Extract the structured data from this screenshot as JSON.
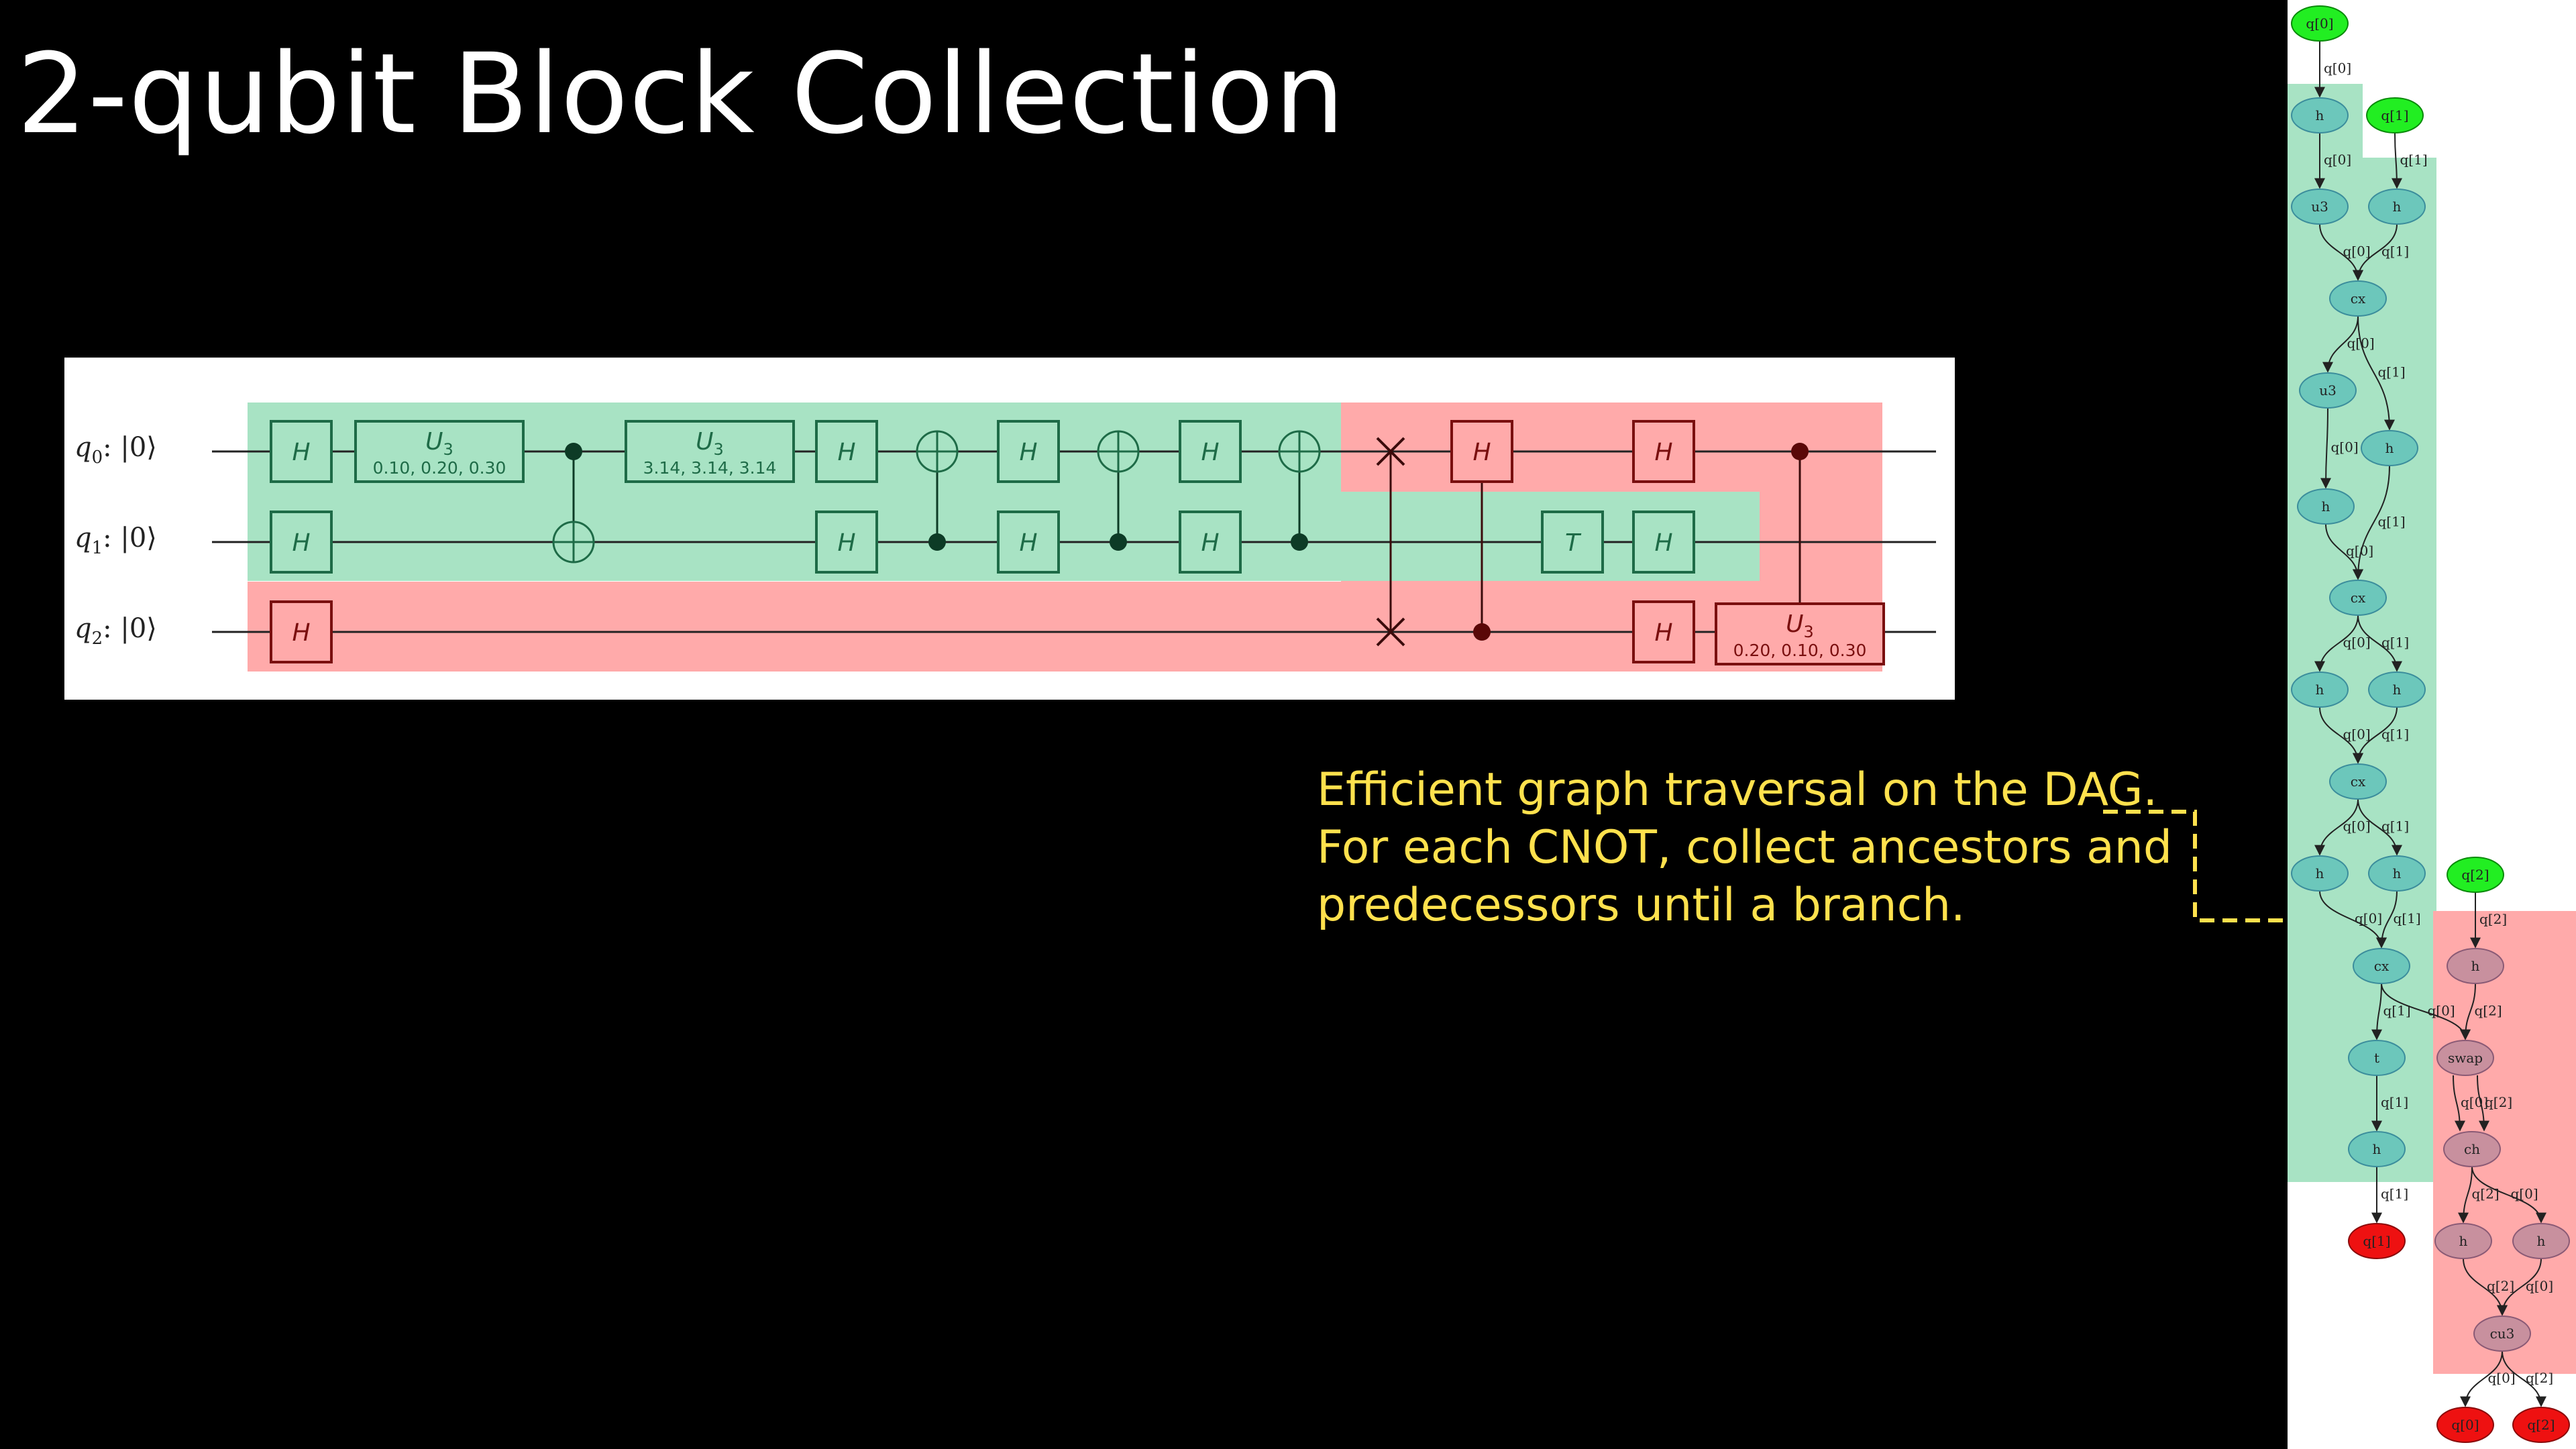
{
  "slide": {
    "title": "2-qubit Block Collection",
    "caption": [
      "Efficient graph traversal on the DAG.",
      "For each CNOT, collect ancestors and",
      "predecessors until a branch."
    ]
  },
  "colors": {
    "block_green": "#a8e3c4",
    "block_red": "#ffaaaa",
    "gate_green": "#1e6b47",
    "gate_red": "#7a0f0f",
    "annotation": "#ffe14d",
    "input_node": "#22ee22",
    "output_node": "#ee1111",
    "dag_green_node": "#6cc7bb",
    "dag_red_node": "#c8909e"
  },
  "circuit": {
    "qubits": [
      {
        "name": "q",
        "index": "0",
        "ket": ": |0⟩"
      },
      {
        "name": "q",
        "index": "1",
        "ket": ": |0⟩"
      },
      {
        "name": "q",
        "index": "2",
        "ket": ": |0⟩"
      }
    ],
    "gates": [
      {
        "id": "h-q0-a",
        "label": "H"
      },
      {
        "id": "h-q1-a",
        "label": "H"
      },
      {
        "id": "h-q2-a",
        "label": "H"
      },
      {
        "id": "u3-q0-a",
        "label": "U",
        "sub": "3",
        "params": "0.10, 0.20, 0.30"
      },
      {
        "id": "u3-q0-b",
        "label": "U",
        "sub": "3",
        "params": "3.14, 3.14, 3.14"
      },
      {
        "id": "h-q0-b",
        "label": "H"
      },
      {
        "id": "h-q1-b",
        "label": "H"
      },
      {
        "id": "h-q0-c",
        "label": "H"
      },
      {
        "id": "h-q1-c",
        "label": "H"
      },
      {
        "id": "h-q0-d",
        "label": "H"
      },
      {
        "id": "h-q1-d",
        "label": "H"
      },
      {
        "id": "h-q0-e",
        "label": "H"
      },
      {
        "id": "t-q1",
        "label": "T"
      },
      {
        "id": "h-q1-e",
        "label": "H"
      },
      {
        "id": "h-q0-f",
        "label": "H"
      },
      {
        "id": "h-q2-b",
        "label": "H"
      },
      {
        "id": "u3-q2",
        "label": "U",
        "sub": "3",
        "params": "0.20, 0.10, 0.30"
      }
    ]
  },
  "dag": {
    "nodes": [
      {
        "id": "in0",
        "label": "q[0]"
      },
      {
        "id": "in1",
        "label": "q[1]"
      },
      {
        "id": "in2",
        "label": "q[2]"
      },
      {
        "id": "h1",
        "label": "h"
      },
      {
        "id": "u3a",
        "label": "u3"
      },
      {
        "id": "h2",
        "label": "h"
      },
      {
        "id": "cx1",
        "label": "cx"
      },
      {
        "id": "u3b",
        "label": "u3"
      },
      {
        "id": "h3",
        "label": "h"
      },
      {
        "id": "h4",
        "label": "h"
      },
      {
        "id": "cx2",
        "label": "cx"
      },
      {
        "id": "h5",
        "label": "h"
      },
      {
        "id": "h6",
        "label": "h"
      },
      {
        "id": "cx3",
        "label": "cx"
      },
      {
        "id": "h7",
        "label": "h"
      },
      {
        "id": "h8",
        "label": "h"
      },
      {
        "id": "cx4",
        "label": "cx"
      },
      {
        "id": "t1",
        "label": "t"
      },
      {
        "id": "h9",
        "label": "h"
      },
      {
        "id": "out1",
        "label": "q[1]"
      },
      {
        "id": "h10",
        "label": "h"
      },
      {
        "id": "swap",
        "label": "swap"
      },
      {
        "id": "ch",
        "label": "ch"
      },
      {
        "id": "h11",
        "label": "h"
      },
      {
        "id": "h12",
        "label": "h"
      },
      {
        "id": "cu3",
        "label": "cu3"
      },
      {
        "id": "out0",
        "label": "q[0]"
      },
      {
        "id": "out2",
        "label": "q[2]"
      }
    ],
    "edges": [
      {
        "from": "in0",
        "to": "h1",
        "label": "q[0]"
      },
      {
        "from": "h1",
        "to": "u3a",
        "label": "q[0]"
      },
      {
        "from": "in1",
        "to": "h2",
        "label": "q[1]"
      },
      {
        "from": "u3a",
        "to": "cx1",
        "label": "q[0]"
      },
      {
        "from": "h2",
        "to": "cx1",
        "label": "q[1]"
      },
      {
        "from": "cx1",
        "to": "u3b",
        "label": "q[0]"
      },
      {
        "from": "cx1",
        "to": "h4",
        "label": "q[1]"
      },
      {
        "from": "u3b",
        "to": "h3",
        "label": "q[0]"
      },
      {
        "from": "h3",
        "to": "cx2",
        "label": "q[0]"
      },
      {
        "from": "h4",
        "to": "cx2",
        "label": "q[1]"
      },
      {
        "from": "cx2",
        "to": "h5",
        "label": "q[0]"
      },
      {
        "from": "cx2",
        "to": "h6",
        "label": "q[1]"
      },
      {
        "from": "h5",
        "to": "cx3",
        "label": "q[0]"
      },
      {
        "from": "h6",
        "to": "cx3",
        "label": "q[1]"
      },
      {
        "from": "cx3",
        "to": "h7",
        "label": "q[0]"
      },
      {
        "from": "cx3",
        "to": "h8",
        "label": "q[1]"
      },
      {
        "from": "h7",
        "to": "cx4",
        "label": "q[0]"
      },
      {
        "from": "h8",
        "to": "cx4",
        "label": "q[1]"
      },
      {
        "from": "cx4",
        "to": "t1",
        "label": "q[1]"
      },
      {
        "from": "t1",
        "to": "h9",
        "label": "q[1]"
      },
      {
        "from": "h9",
        "to": "out1",
        "label": "q[1]"
      },
      {
        "from": "in2",
        "to": "h10",
        "label": "q[2]"
      },
      {
        "from": "cx4",
        "to": "swap",
        "label": "q[0]"
      },
      {
        "from": "h10",
        "to": "swap",
        "label": "q[2]"
      },
      {
        "from": "swap",
        "to": "ch",
        "label": "q[0]"
      },
      {
        "from": "swap",
        "to": "ch",
        "label": "q[2]"
      },
      {
        "from": "ch",
        "to": "h11",
        "label": "q[2]"
      },
      {
        "from": "ch",
        "to": "h12",
        "label": "q[0]"
      },
      {
        "from": "h11",
        "to": "cu3",
        "label": "q[2]"
      },
      {
        "from": "h12",
        "to": "cu3",
        "label": "q[0]"
      },
      {
        "from": "cu3",
        "to": "out0",
        "label": "q[0]"
      },
      {
        "from": "cu3",
        "to": "out2",
        "label": "q[2]"
      }
    ]
  }
}
